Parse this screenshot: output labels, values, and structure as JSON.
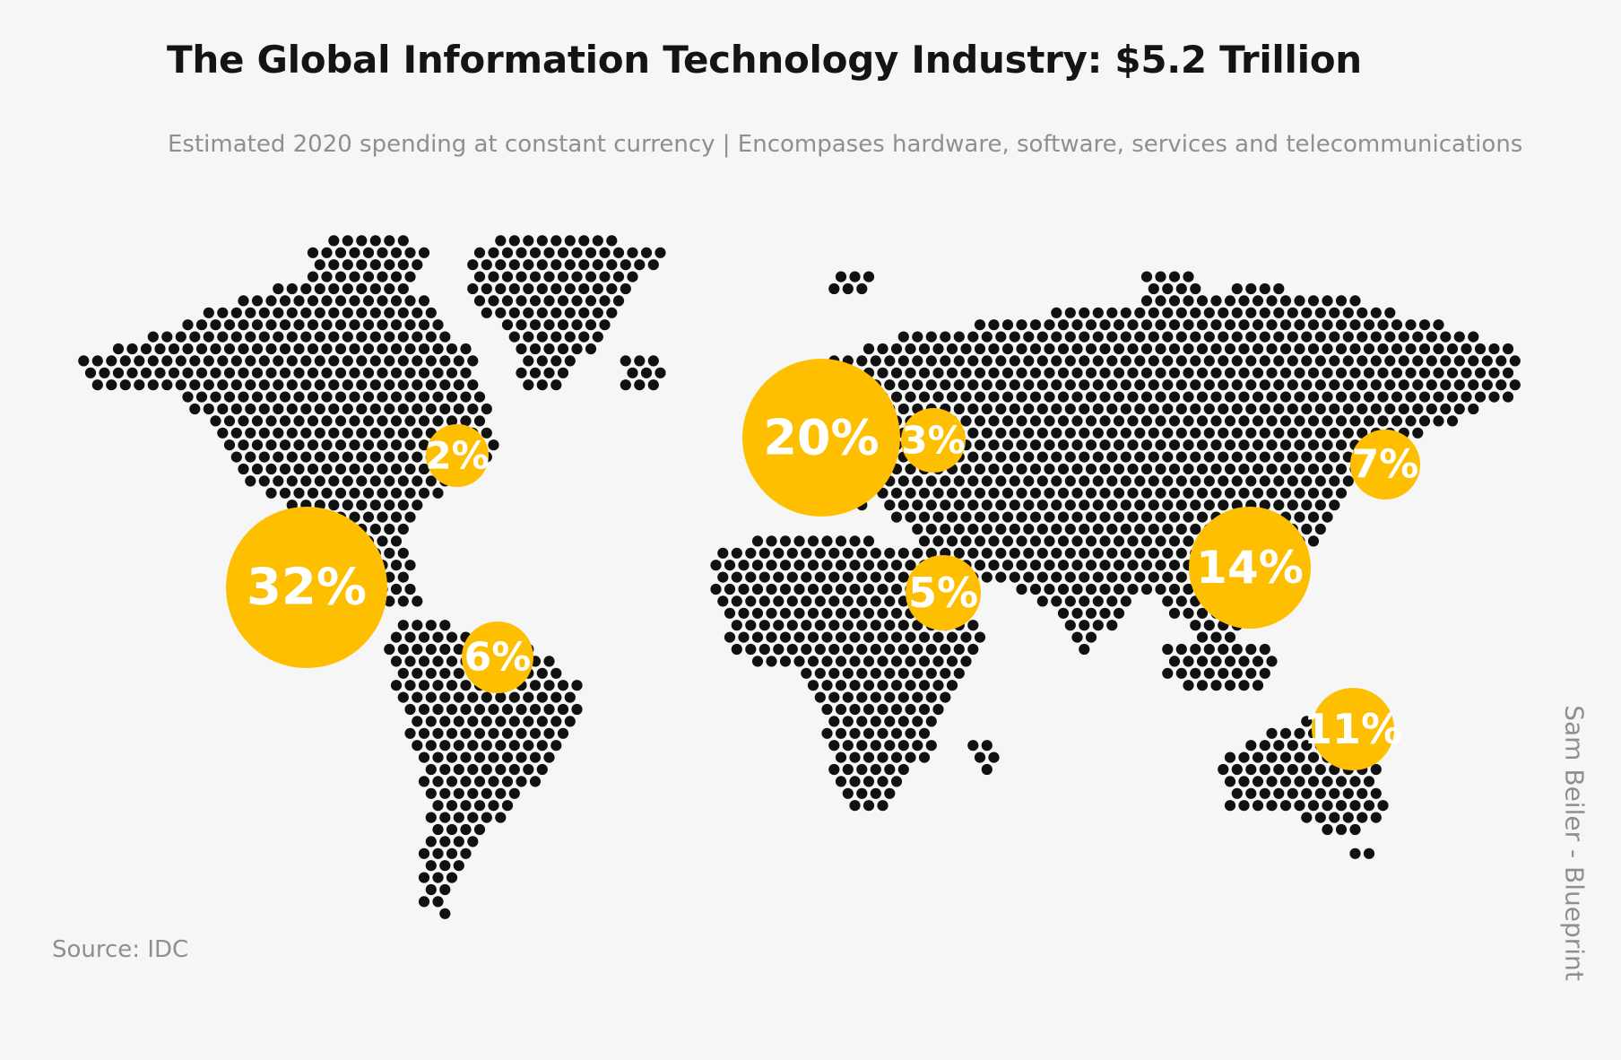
{
  "header": {
    "title": "The Global Information Technology Industry: $5.2 Trillion",
    "subtitle": "Estimated 2020 spending at constant currency | Encompases hardware, software, services and telecommunications"
  },
  "footer": {
    "source": "Source: IDC",
    "credit": "Sam Beiler - Blueprint"
  },
  "colors": {
    "bubble": "#fdbf00",
    "dot": "#111111",
    "background": "#f6f6f7",
    "muted_text": "#8f8f8f"
  },
  "regions": [
    {
      "id": "usa",
      "value": 32,
      "label": "32%"
    },
    {
      "id": "canada",
      "value": 2,
      "label": "2%"
    },
    {
      "id": "latin-america",
      "value": 6,
      "label": "6%"
    },
    {
      "id": "western-europe",
      "value": 20,
      "label": "20%"
    },
    {
      "id": "central-eastern-europe",
      "value": 3,
      "label": "3%"
    },
    {
      "id": "middle-east-africa",
      "value": 5,
      "label": "5%"
    },
    {
      "id": "china",
      "value": 14,
      "label": "14%"
    },
    {
      "id": "japan",
      "value": 7,
      "label": "7%"
    },
    {
      "id": "asia-pacific",
      "value": 11,
      "label": "11%"
    }
  ]
}
